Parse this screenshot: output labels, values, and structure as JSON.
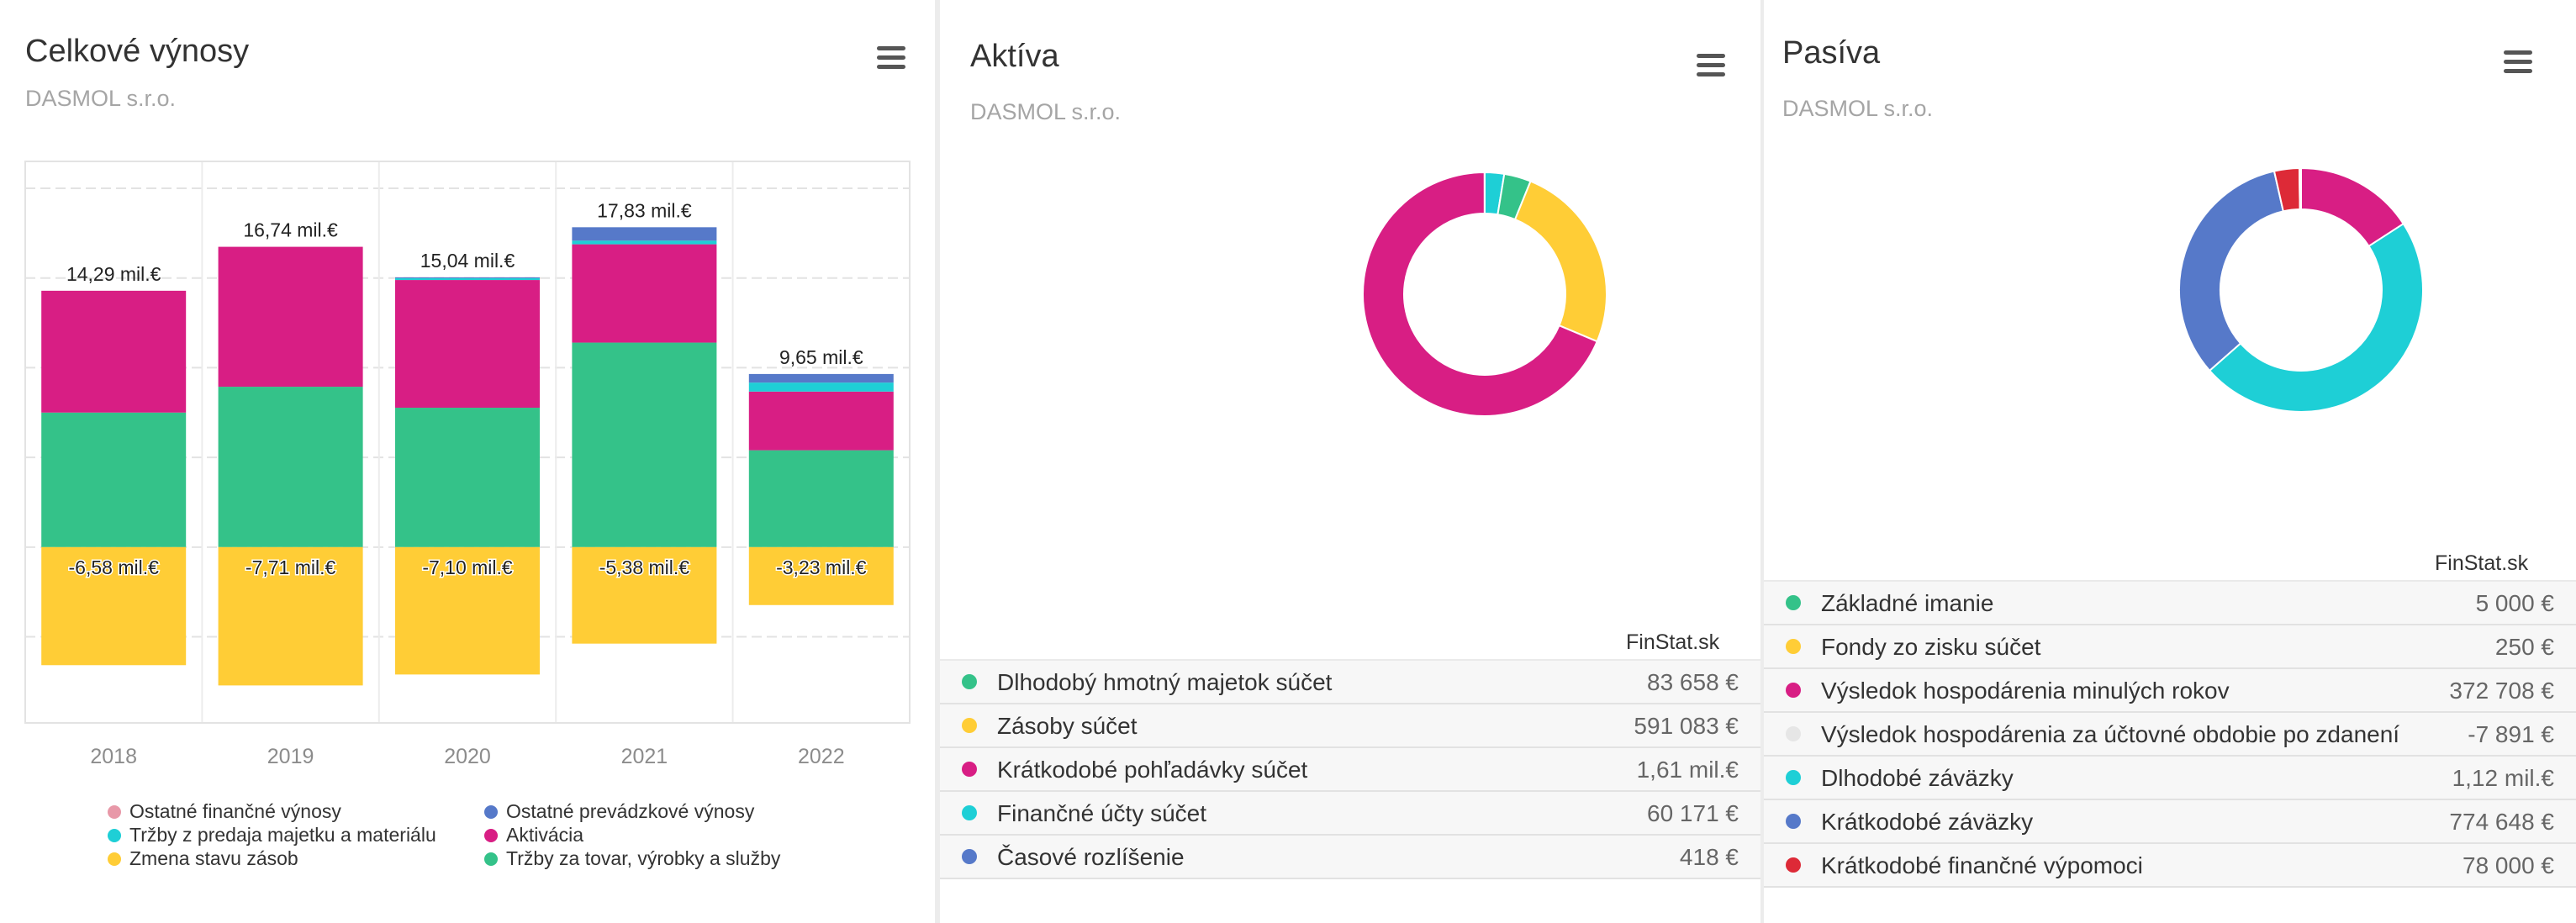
{
  "panels": {
    "vynosy": {
      "title": "Celkové výnosy",
      "subtitle": "DASMOL s.r.o."
    },
    "aktiva": {
      "title": "Aktíva",
      "subtitle": "DASMOL s.r.o.",
      "credit": "FinStat.sk"
    },
    "pasiva": {
      "title": "Pasíva",
      "subtitle": "DASMOL s.r.o.",
      "credit": "FinStat.sk"
    }
  },
  "chart_data": [
    {
      "type": "bar",
      "stacked": true,
      "title": "Celkové výnosy",
      "subtitle": "DASMOL s.r.o.",
      "categories": [
        "2018",
        "2019",
        "2020",
        "2021",
        "2022"
      ],
      "unit": "mil.€",
      "ylim": [
        -9.8,
        21.5
      ],
      "grid": true,
      "legend_position": "bottom",
      "series": [
        {
          "name": "Ostatné finančné výnosy",
          "color": "#e898a8",
          "values": [
            0,
            0,
            0,
            0,
            0
          ]
        },
        {
          "name": "Ostatné prevádzkové výnosy",
          "color": "#5679c9",
          "values": [
            0,
            0,
            0.05,
            0.75,
            0.48
          ]
        },
        {
          "name": "Tržby z predaja majetku a materiálu",
          "color": "#1ecfd6",
          "values": [
            0,
            0,
            0.1,
            0.2,
            0.5
          ]
        },
        {
          "name": "Aktivácia",
          "color": "#d81e84",
          "values": [
            6.79,
            7.8,
            7.12,
            5.48,
            3.27
          ]
        },
        {
          "name": "Zmena stavu zásob",
          "color": "#ffcd36",
          "values": [
            -6.58,
            -7.71,
            -7.1,
            -5.38,
            -3.23
          ]
        },
        {
          "name": "Tržby za tovar, výrobky a služby",
          "color": "#34c289",
          "values": [
            7.5,
            8.94,
            7.77,
            11.4,
            5.4
          ]
        }
      ],
      "total_labels": [
        "14,29 mil.€",
        "16,74 mil.€",
        "15,04 mil.€",
        "17,83 mil.€",
        "9,65 mil.€"
      ],
      "negative_labels": [
        "-6,58 mil.€",
        "-7,71 mil.€",
        "-7,10 mil.€",
        "-5,38 mil.€",
        "-3,23 mil.€"
      ]
    },
    {
      "type": "pie",
      "donut": true,
      "title": "Aktíva",
      "subtitle": "DASMOL s.r.o.",
      "slices": [
        {
          "label": "Dlhodobý hmotný majetok súčet",
          "value": 83658,
          "display": "83 658 €",
          "color": "#34c289"
        },
        {
          "label": "Zásoby súčet",
          "value": 591083,
          "display": "591 083 €",
          "color": "#ffcd36"
        },
        {
          "label": "Krátkodobé pohľadávky súčet",
          "value": 1610000,
          "display": "1,61 mil.€",
          "color": "#d81e84"
        },
        {
          "label": "Finančné účty súčet",
          "value": 60171,
          "display": "60 171 €",
          "color": "#1ecfd6"
        },
        {
          "label": "Časové rozlíšenie",
          "value": 418,
          "display": "418 €",
          "color": "#5679c9"
        }
      ]
    },
    {
      "type": "pie",
      "donut": true,
      "title": "Pasíva",
      "subtitle": "DASMOL s.r.o.",
      "slices": [
        {
          "label": "Základné imanie",
          "value": 5000,
          "display": "5 000 €",
          "color": "#34c289"
        },
        {
          "label": "Fondy zo zisku súčet",
          "value": 250,
          "display": "250 €",
          "color": "#ffcd36"
        },
        {
          "label": "Výsledok hospodárenia minulých rokov",
          "value": 372708,
          "display": "372 708 €",
          "color": "#d81e84"
        },
        {
          "label": "Výsledok hospodárenia za účtovné obdobie po zdanení",
          "value": -7891,
          "display": "-7 891 €",
          "color": "#e6e6e6"
        },
        {
          "label": "Dlhodobé záväzky",
          "value": 1120000,
          "display": "1,12 mil.€",
          "color": "#1ecfd6"
        },
        {
          "label": "Krátkodobé záväzky",
          "value": 774648,
          "display": "774 648 €",
          "color": "#5679c9"
        },
        {
          "label": "Krátkodobé finančné výpomoci",
          "value": 78000,
          "display": "78 000 €",
          "color": "#dd2a37"
        }
      ]
    }
  ]
}
